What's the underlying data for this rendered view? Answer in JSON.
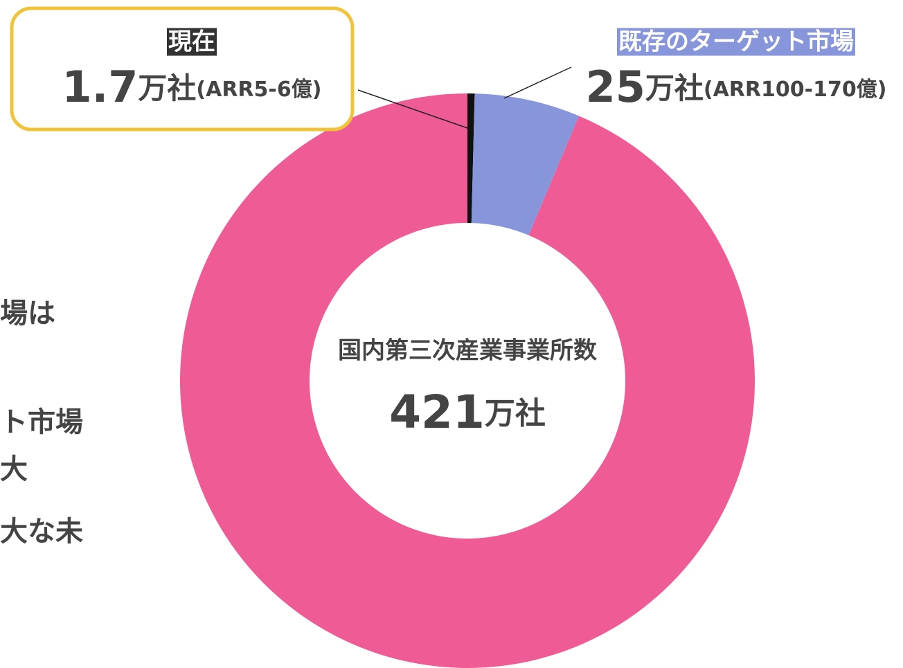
{
  "chart_data": {
    "type": "donut",
    "categories": [
      "現在",
      "既存のターゲット市場",
      null
    ],
    "values": [
      1.7,
      25,
      394.3
    ],
    "value_labels": [
      "1.7万社(ARR5-6億)",
      "25万社(ARR100-170億)",
      null
    ],
    "colors": [
      "#111111",
      "#8795db",
      "#ef5b95"
    ],
    "center_title": "国内第三次産業事業所数",
    "center_value": "421万社",
    "side_text": [
      "場は",
      "ト市場",
      "大",
      "大な未"
    ]
  }
}
